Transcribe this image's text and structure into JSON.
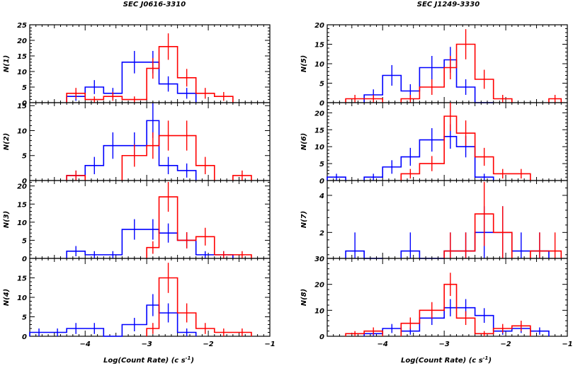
{
  "figure": {
    "xlabel_left": "Log(Count Rate) (c s",
    "xlabel_right": "Log(Count Rate) (c s",
    "xlabel_sup": "-1",
    "xlabel_close": ")",
    "colors": {
      "blue": "#0000ff",
      "red": "#ff0000"
    }
  },
  "chart_data": [
    {
      "type": "histogram",
      "column": "left",
      "title": "SEC J0616-3310",
      "ylabel": "N(1)",
      "xlim": [
        -4.9,
        -1.0
      ],
      "ylim": [
        0,
        25
      ],
      "yticks": [
        0,
        5,
        10,
        15,
        20,
        25
      ],
      "xticks": [
        -4,
        -3,
        -2,
        -1
      ],
      "xtick_labels_shown": false,
      "series": [
        {
          "color": "blue",
          "bins": [
            [
              -4.3,
              -4.0,
              2
            ],
            [
              -4.0,
              -3.7,
              5
            ],
            [
              -3.7,
              -3.4,
              3
            ],
            [
              -3.4,
              -3.0,
              13
            ],
            [
              -3.0,
              -2.8,
              13
            ],
            [
              -2.8,
              -2.5,
              6
            ],
            [
              -2.5,
              -2.2,
              3
            ]
          ]
        },
        {
          "color": "red",
          "bins": [
            [
              -4.3,
              -4.0,
              3
            ],
            [
              -4.0,
              -3.7,
              1
            ],
            [
              -3.7,
              -3.4,
              2
            ],
            [
              -3.4,
              -3.0,
              1
            ],
            [
              -3.0,
              -2.8,
              11
            ],
            [
              -2.8,
              -2.5,
              18
            ],
            [
              -2.5,
              -2.2,
              8
            ],
            [
              -2.2,
              -1.9,
              3
            ],
            [
              -1.9,
              -1.6,
              2
            ]
          ]
        }
      ]
    },
    {
      "type": "histogram",
      "column": "left",
      "ylabel": "N(2)",
      "xlim": [
        -4.9,
        -1.0
      ],
      "ylim": [
        0,
        15.6
      ],
      "yticks": [
        0,
        5,
        10,
        15
      ],
      "xticks": [
        -4,
        -3,
        -2,
        -1
      ],
      "xtick_labels_shown": false,
      "series": [
        {
          "color": "blue",
          "bins": [
            [
              -4.3,
              -4.0,
              1
            ],
            [
              -4.0,
              -3.7,
              3
            ],
            [
              -3.7,
              -3.4,
              7
            ],
            [
              -3.4,
              -3.0,
              7
            ],
            [
              -3.0,
              -2.8,
              12
            ],
            [
              -2.8,
              -2.5,
              3
            ],
            [
              -2.5,
              -2.2,
              2
            ]
          ]
        },
        {
          "color": "red",
          "bins": [
            [
              -4.3,
              -4.0,
              1
            ],
            [
              -3.4,
              -3.0,
              5
            ],
            [
              -3.0,
              -2.8,
              7
            ],
            [
              -2.8,
              -2.5,
              9
            ],
            [
              -2.5,
              -2.2,
              9
            ],
            [
              -2.2,
              -1.9,
              3
            ],
            [
              -1.6,
              -1.3,
              1
            ]
          ]
        }
      ]
    },
    {
      "type": "histogram",
      "column": "left",
      "ylabel": "N(3)",
      "xlim": [
        -4.9,
        -1.0
      ],
      "ylim": [
        0,
        21.5
      ],
      "yticks": [
        0,
        5,
        10,
        15,
        20
      ],
      "xticks": [
        -4,
        -3,
        -2,
        -1
      ],
      "xtick_labels_shown": false,
      "series": [
        {
          "color": "blue",
          "bins": [
            [
              -4.3,
              -4.0,
              2
            ],
            [
              -4.0,
              -3.7,
              1
            ],
            [
              -3.7,
              -3.4,
              1
            ],
            [
              -3.4,
              -3.0,
              8
            ],
            [
              -3.0,
              -2.8,
              8
            ],
            [
              -2.8,
              -2.5,
              7
            ],
            [
              -2.5,
              -2.2,
              5
            ],
            [
              -2.2,
              -1.9,
              1
            ],
            [
              -1.9,
              -1.6,
              1
            ]
          ]
        },
        {
          "color": "red",
          "bins": [
            [
              -3.0,
              -2.8,
              3
            ],
            [
              -2.8,
              -2.5,
              17
            ],
            [
              -2.5,
              -2.2,
              5
            ],
            [
              -2.2,
              -1.9,
              6
            ],
            [
              -1.9,
              -1.6,
              1
            ],
            [
              -1.6,
              -1.3,
              1
            ]
          ]
        }
      ]
    },
    {
      "type": "histogram",
      "column": "left",
      "ylabel": "N(4)",
      "xlim": [
        -4.9,
        -1.0
      ],
      "ylim": [
        0,
        20
      ],
      "yticks": [
        0,
        5,
        10,
        15
      ],
      "xticks": [
        -4,
        -3,
        -2,
        -1
      ],
      "xtick_labels_shown": true,
      "series": [
        {
          "color": "blue",
          "bins": [
            [
              -4.9,
              -4.6,
              1
            ],
            [
              -4.6,
              -4.3,
              1
            ],
            [
              -4.3,
              -4.0,
              2
            ],
            [
              -4.0,
              -3.7,
              2
            ],
            [
              -3.7,
              -3.4,
              0
            ],
            [
              -3.4,
              -3.0,
              3
            ],
            [
              -3.0,
              -2.8,
              8
            ],
            [
              -2.8,
              -2.5,
              6
            ],
            [
              -2.5,
              -2.2,
              1
            ]
          ]
        },
        {
          "color": "red",
          "bins": [
            [
              -3.0,
              -2.8,
              2
            ],
            [
              -2.8,
              -2.5,
              15
            ],
            [
              -2.5,
              -2.2,
              6
            ],
            [
              -2.2,
              -1.9,
              2
            ],
            [
              -1.9,
              -1.6,
              1
            ],
            [
              -1.6,
              -1.3,
              1
            ]
          ]
        }
      ]
    },
    {
      "type": "histogram",
      "column": "right",
      "title": "SEC J1249-3330",
      "ylabel": "N(5)",
      "xlim": [
        -4.9,
        -1.0
      ],
      "ylim": [
        0,
        20
      ],
      "yticks": [
        0,
        5,
        10,
        15,
        20
      ],
      "xticks": [
        -4,
        -3,
        -2,
        -1
      ],
      "xtick_labels_shown": false,
      "series": [
        {
          "color": "blue",
          "bins": [
            [
              -4.3,
              -4.0,
              2
            ],
            [
              -4.0,
              -3.7,
              7
            ],
            [
              -3.7,
              -3.4,
              3
            ],
            [
              -3.4,
              -3.0,
              9
            ],
            [
              -3.0,
              -2.8,
              11
            ],
            [
              -2.8,
              -2.5,
              4
            ],
            [
              -2.5,
              -2.2,
              0
            ]
          ]
        },
        {
          "color": "red",
          "bins": [
            [
              -4.6,
              -4.3,
              1
            ],
            [
              -4.3,
              -4.0,
              1
            ],
            [
              -3.7,
              -3.4,
              1
            ],
            [
              -3.4,
              -3.0,
              4
            ],
            [
              -3.0,
              -2.8,
              9
            ],
            [
              -2.8,
              -2.5,
              15
            ],
            [
              -2.5,
              -2.2,
              6
            ],
            [
              -2.2,
              -1.9,
              1
            ],
            [
              -1.3,
              -1.1,
              1
            ]
          ]
        }
      ]
    },
    {
      "type": "histogram",
      "column": "right",
      "ylabel": "N(6)",
      "xlim": [
        -4.9,
        -1.0
      ],
      "ylim": [
        0,
        23
      ],
      "yticks": [
        0,
        5,
        10,
        15,
        20
      ],
      "xticks": [
        -4,
        -3,
        -2,
        -1
      ],
      "xtick_labels_shown": false,
      "series": [
        {
          "color": "blue",
          "bins": [
            [
              -4.9,
              -4.6,
              1
            ],
            [
              -4.3,
              -4.0,
              1
            ],
            [
              -4.0,
              -3.7,
              4
            ],
            [
              -3.7,
              -3.4,
              7
            ],
            [
              -3.4,
              -3.0,
              12
            ],
            [
              -3.0,
              -2.8,
              13
            ],
            [
              -2.8,
              -2.5,
              10
            ],
            [
              -2.5,
              -2.2,
              1
            ]
          ]
        },
        {
          "color": "red",
          "bins": [
            [
              -3.7,
              -3.4,
              2
            ],
            [
              -3.4,
              -3.0,
              5
            ],
            [
              -3.0,
              -2.8,
              19
            ],
            [
              -2.8,
              -2.5,
              14
            ],
            [
              -2.5,
              -2.2,
              7
            ],
            [
              -2.2,
              -1.9,
              2
            ],
            [
              -1.9,
              -1.6,
              2
            ]
          ]
        }
      ]
    },
    {
      "type": "histogram",
      "column": "right",
      "ylabel": "N(7)",
      "xlim": [
        -4.9,
        -1.0
      ],
      "ylim": [
        0.6,
        4.8
      ],
      "yticks": [
        2,
        4
      ],
      "xticks": [
        -4,
        -3,
        -2,
        -1
      ],
      "xtick_labels_shown": false,
      "series": [
        {
          "color": "blue",
          "bins": [
            [
              -4.6,
              -4.3,
              1
            ],
            [
              -4.3,
              -4.0,
              0
            ],
            [
              -3.7,
              -3.4,
              1
            ],
            [
              -3.4,
              -3.0,
              0
            ],
            [
              -3.0,
              -2.8,
              1
            ],
            [
              -2.8,
              -2.5,
              1
            ],
            [
              -2.5,
              -2.2,
              2
            ],
            [
              -2.2,
              -1.9,
              2
            ],
            [
              -1.9,
              -1.6,
              1
            ],
            [
              -1.6,
              -1.3,
              1
            ]
          ]
        },
        {
          "color": "red",
          "bins": [
            [
              -3.0,
              -2.8,
              1
            ],
            [
              -2.8,
              -2.5,
              1
            ],
            [
              -2.5,
              -2.2,
              3
            ],
            [
              -2.2,
              -1.9,
              2
            ],
            [
              -1.6,
              -1.3,
              1
            ],
            [
              -1.3,
              -1.1,
              1
            ]
          ]
        }
      ]
    },
    {
      "type": "histogram",
      "column": "right",
      "ylabel": "N(8)",
      "ytick_top_label": "30",
      "xlim": [
        -4.9,
        -1.0
      ],
      "ylim": [
        0,
        30
      ],
      "yticks": [
        0,
        10,
        20
      ],
      "xticks": [
        -4,
        -3,
        -2,
        -1
      ],
      "xtick_labels_shown": true,
      "series": [
        {
          "color": "blue",
          "bins": [
            [
              -4.3,
              -4.0,
              1
            ],
            [
              -4.0,
              -3.7,
              3
            ],
            [
              -3.7,
              -3.4,
              2
            ],
            [
              -3.4,
              -3.0,
              7
            ],
            [
              -3.0,
              -2.8,
              11
            ],
            [
              -2.8,
              -2.5,
              11
            ],
            [
              -2.5,
              -2.2,
              8
            ],
            [
              -2.2,
              -1.9,
              2
            ],
            [
              -1.9,
              -1.6,
              3
            ],
            [
              -1.6,
              -1.3,
              2
            ]
          ]
        },
        {
          "color": "red",
          "bins": [
            [
              -4.6,
              -4.3,
              1
            ],
            [
              -4.3,
              -4.0,
              2
            ],
            [
              -3.7,
              -3.4,
              5
            ],
            [
              -3.4,
              -3.0,
              10
            ],
            [
              -3.0,
              -2.8,
              20
            ],
            [
              -2.8,
              -2.5,
              7
            ],
            [
              -2.5,
              -2.2,
              1
            ],
            [
              -2.2,
              -1.9,
              3
            ],
            [
              -1.9,
              -1.6,
              4
            ]
          ]
        }
      ]
    }
  ]
}
